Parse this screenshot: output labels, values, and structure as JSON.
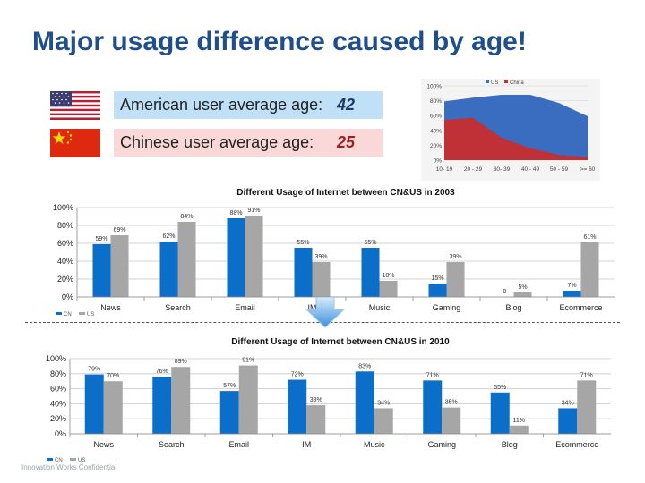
{
  "slide": {
    "title": "Major usage difference caused by age!",
    "footer": "Innovation Works Confidential"
  },
  "info": {
    "us_label": "American user average age:",
    "us_value": "42",
    "cn_label": "Chinese user average age:",
    "cn_value": "25"
  },
  "colors": {
    "cn": "#0b6fc9",
    "us": "#a6a6a6",
    "area_us": "#3a6cc0",
    "area_china": "#cc2b2b"
  },
  "chart_data": [
    {
      "type": "area",
      "title": "",
      "categories": [
        "10- 19",
        "20 - 29",
        "30- 39",
        "40 - 49",
        "50 - 59",
        ">= 60"
      ],
      "ylim": [
        0,
        100
      ],
      "yticks": [
        "0%",
        "20%",
        "40%",
        "60%",
        "80%",
        "100%"
      ],
      "legend": "top-left",
      "series": [
        {
          "name": "US",
          "values": [
            79,
            84,
            88,
            88,
            77,
            59
          ]
        },
        {
          "name": "China",
          "values": [
            54,
            57,
            30,
            16,
            7,
            4
          ]
        }
      ]
    },
    {
      "type": "bar",
      "title": "Different Usage of Internet between CN&US in 2003",
      "categories": [
        "News",
        "Search",
        "Email",
        "IM",
        "Music",
        "Gaming",
        "Blog",
        "Ecommerce"
      ],
      "ylim": [
        0,
        100
      ],
      "yticks": [
        "0%",
        "20%",
        "40%",
        "60%",
        "80%",
        "100%"
      ],
      "legend": "bottom-left",
      "series": [
        {
          "name": "CN",
          "values": [
            59,
            62,
            88,
            55,
            55,
            15,
            0,
            7
          ],
          "labels": [
            "59%",
            "62%",
            "88%",
            "55%",
            "55%",
            "15%",
            "0",
            "7%"
          ]
        },
        {
          "name": "US",
          "values": [
            69,
            84,
            91,
            39,
            18,
            39,
            5,
            61
          ],
          "labels": [
            "69%",
            "84%",
            "91%",
            "39%",
            "18%",
            "39%",
            "5%",
            "61%"
          ]
        }
      ]
    },
    {
      "type": "bar",
      "title": "Different Usage of Internet between CN&US in 2010",
      "categories": [
        "News",
        "Search",
        "Email",
        "IM",
        "Music",
        "Gaming",
        "Blog",
        "Ecommerce"
      ],
      "ylim": [
        0,
        100
      ],
      "yticks": [
        "0%",
        "20%",
        "40%",
        "60%",
        "80%",
        "100%"
      ],
      "legend": "bottom-left",
      "series": [
        {
          "name": "CN",
          "values": [
            79,
            76,
            57,
            72,
            83,
            71,
            55,
            34
          ],
          "labels": [
            "79%",
            "76%",
            "57%",
            "72%",
            "83%",
            "71%",
            "55%",
            "34%"
          ]
        },
        {
          "name": "US",
          "values": [
            70,
            89,
            91,
            38,
            34,
            35,
            11,
            71
          ],
          "labels": [
            "70%",
            "89%",
            "91%",
            "38%",
            "34%",
            "35%",
            "11%",
            "71%"
          ]
        }
      ]
    }
  ]
}
